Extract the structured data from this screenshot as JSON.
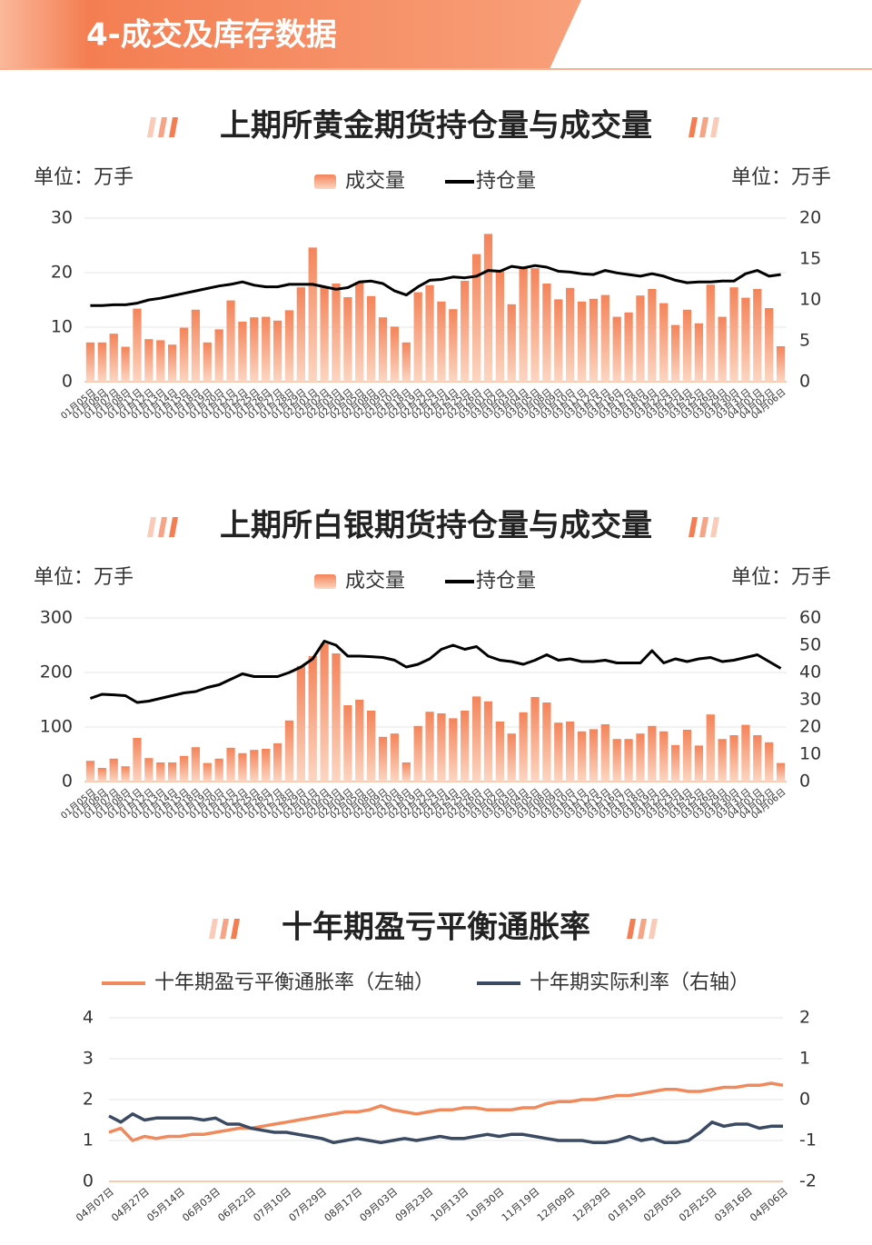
{
  "header": {
    "title": "4-成交及库存数据"
  },
  "chart_data": [
    {
      "type": "bar",
      "title": "上期所黄金期货持仓量与成交量",
      "y_label": "单位：万手",
      "y2_label": "单位：万手",
      "categories": [
        "01月05日",
        "01月06日",
        "01月07日",
        "01月08日",
        "01月11日",
        "01月12日",
        "01月13日",
        "01月14日",
        "01月15日",
        "01月18日",
        "01月19日",
        "01月20日",
        "01月21日",
        "01月22日",
        "01月25日",
        "01月26日",
        "01月27日",
        "01月28日",
        "01月29日",
        "02月01日",
        "02月02日",
        "02月03日",
        "02月04日",
        "02月05日",
        "02月08日",
        "02月09日",
        "02月10日",
        "02月18日",
        "02月19日",
        "02月22日",
        "02月23日",
        "02月24日",
        "02月25日",
        "02月26日",
        "03月01日",
        "03月02日",
        "03月03日",
        "03月04日",
        "03月05日",
        "03月08日",
        "03月09日",
        "03月10日",
        "03月11日",
        "03月12日",
        "03月15日",
        "03月16日",
        "03月17日",
        "03月18日",
        "03月19日",
        "03月22日",
        "03月23日",
        "03月24日",
        "03月25日",
        "03月26日",
        "03月29日",
        "03月30日",
        "03月31日",
        "04月01日",
        "04月02日",
        "04月06日"
      ],
      "series": [
        {
          "name": "成交量",
          "color": "#f4845a",
          "values": [
            7.2,
            7.2,
            8.8,
            6.4,
            13.4,
            7.8,
            7.6,
            6.8,
            9.9,
            13.2,
            7.2,
            9.6,
            14.9,
            11.0,
            11.8,
            11.9,
            11.2,
            13.1,
            17.3,
            24.6,
            17.3,
            18.0,
            15.5,
            18.3,
            15.7,
            11.8,
            10.1,
            7.2,
            16.4,
            17.7,
            14.7,
            13.3,
            18.5,
            23.4,
            27.1,
            20.5,
            14.2,
            21.0,
            20.8,
            18.0,
            15.1,
            17.2,
            14.7,
            15.2,
            15.9,
            11.9,
            12.7,
            15.8,
            17.0,
            14.4,
            10.4,
            13.2,
            10.7,
            17.8,
            11.9,
            17.3,
            15.4,
            17.0,
            13.5,
            6.5
          ]
        },
        {
          "name": "持仓量",
          "color": "#000000",
          "type": "line",
          "axis": "y2",
          "values": [
            9.3,
            9.3,
            9.4,
            9.4,
            9.6,
            10.0,
            10.2,
            10.5,
            10.8,
            11.1,
            11.4,
            11.7,
            11.9,
            12.2,
            11.8,
            11.6,
            11.6,
            11.9,
            11.9,
            11.9,
            11.6,
            11.3,
            11.5,
            12.2,
            12.3,
            12.0,
            11.1,
            10.6,
            11.6,
            12.4,
            12.5,
            12.8,
            12.7,
            12.9,
            13.6,
            13.5,
            14.1,
            13.9,
            14.2,
            14.0,
            13.5,
            13.4,
            13.2,
            13.1,
            13.6,
            13.3,
            13.1,
            12.9,
            13.2,
            12.9,
            12.4,
            12.1,
            12.2,
            12.2,
            12.3,
            12.3,
            13.2,
            13.6,
            12.9,
            13.1
          ]
        }
      ],
      "ylim": [
        0,
        30
      ],
      "yticks": [
        0,
        10,
        20,
        30
      ],
      "y2lim": [
        0,
        20
      ],
      "y2ticks": [
        0,
        5,
        10,
        15,
        20
      ],
      "grid": true
    },
    {
      "type": "bar",
      "title": "上期所白银期货持仓量与成交量",
      "y_label": "单位：万手",
      "y2_label": "单位：万手",
      "categories": [
        "01月05日",
        "01月06日",
        "01月07日",
        "01月08日",
        "01月11日",
        "01月12日",
        "01月13日",
        "01月14日",
        "01月15日",
        "01月18日",
        "01月19日",
        "01月20日",
        "01月21日",
        "01月22日",
        "01月25日",
        "01月26日",
        "01月27日",
        "01月28日",
        "01月29日",
        "02月01日",
        "02月02日",
        "02月03日",
        "02月04日",
        "02月05日",
        "02月08日",
        "02月09日",
        "02月10日",
        "02月18日",
        "02月19日",
        "02月22日",
        "02月23日",
        "02月24日",
        "02月25日",
        "02月26日",
        "03月01日",
        "03月02日",
        "03月03日",
        "03月04日",
        "03月05日",
        "03月08日",
        "03月09日",
        "03月10日",
        "03月11日",
        "03月12日",
        "03月15日",
        "03月16日",
        "03月17日",
        "03月18日",
        "03月19日",
        "03月22日",
        "03月23日",
        "03月24日",
        "03月25日",
        "03月26日",
        "03月29日",
        "03月30日",
        "03月31日",
        "04月01日",
        "04月02日",
        "04月06日"
      ],
      "series": [
        {
          "name": "成交量",
          "color": "#f4845a",
          "values": [
            38,
            25,
            42,
            28,
            80,
            43,
            35,
            35,
            47,
            63,
            34,
            42,
            62,
            52,
            58,
            60,
            70,
            112,
            212,
            230,
            253,
            235,
            140,
            150,
            130,
            82,
            88,
            35,
            102,
            128,
            125,
            116,
            130,
            156,
            147,
            110,
            88,
            127,
            155,
            145,
            108,
            110,
            92,
            96,
            105,
            78,
            78,
            88,
            102,
            92,
            67,
            95,
            66,
            123,
            78,
            85,
            104,
            85,
            72,
            34
          ]
        },
        {
          "name": "持仓量",
          "color": "#000000",
          "type": "line",
          "axis": "y2",
          "values": [
            30.5,
            32,
            31.8,
            31.5,
            29,
            29.5,
            30.5,
            31.5,
            32.5,
            33,
            34.5,
            35.5,
            37.5,
            39.5,
            38.5,
            38.5,
            38.5,
            40,
            42,
            45,
            51.5,
            50,
            46,
            46,
            45.8,
            45.5,
            44.5,
            42,
            43,
            45,
            48.5,
            50,
            48.5,
            49.5,
            46,
            44.5,
            44,
            43,
            44.5,
            46.5,
            44.5,
            45,
            44,
            44,
            44.5,
            43.5,
            43.5,
            43.5,
            48,
            43.5,
            45,
            44,
            45,
            45.5,
            44,
            44.5,
            45.5,
            46.5,
            44,
            41.5
          ]
        }
      ],
      "ylim": [
        0,
        300
      ],
      "yticks": [
        0,
        100,
        200,
        300
      ],
      "y2lim": [
        0,
        60
      ],
      "y2ticks": [
        0,
        10,
        20,
        30,
        40,
        50,
        60
      ],
      "grid": true
    },
    {
      "type": "line",
      "title": "十年期盈亏平衡通胀率",
      "categories": [
        "04月07日",
        null,
        null,
        "04月27日",
        null,
        null,
        "05月14日",
        null,
        null,
        "06月03日",
        null,
        null,
        "06月22日",
        null,
        null,
        "07月10日",
        null,
        null,
        "07月29日",
        null,
        null,
        "08月17日",
        null,
        null,
        "09月03日",
        null,
        null,
        "09月23日",
        null,
        null,
        "10月13日",
        null,
        null,
        "10月30日",
        null,
        null,
        "11月19日",
        null,
        null,
        "12月09日",
        null,
        null,
        "12月29日",
        null,
        null,
        "01月19日",
        null,
        null,
        "02月05日",
        null,
        null,
        "02月25日",
        null,
        null,
        "03月16日",
        null,
        null,
        "04月06日"
      ],
      "series": [
        {
          "name": "十年期盈亏平衡通胀率（左轴）",
          "color": "#f08a5d",
          "values": [
            1.2,
            1.3,
            1.0,
            1.1,
            1.05,
            1.1,
            1.1,
            1.15,
            1.15,
            1.2,
            1.25,
            1.3,
            1.3,
            1.35,
            1.4,
            1.45,
            1.5,
            1.55,
            1.6,
            1.65,
            1.7,
            1.7,
            1.75,
            1.85,
            1.75,
            1.7,
            1.65,
            1.7,
            1.75,
            1.75,
            1.8,
            1.8,
            1.75,
            1.75,
            1.75,
            1.8,
            1.8,
            1.9,
            1.95,
            1.95,
            2.0,
            2.0,
            2.05,
            2.1,
            2.1,
            2.15,
            2.2,
            2.25,
            2.25,
            2.2,
            2.2,
            2.25,
            2.3,
            2.3,
            2.35,
            2.35,
            2.4,
            2.35
          ]
        },
        {
          "name": "十年期实际利率（右轴）",
          "color": "#3b4a63",
          "axis": "y2",
          "values": [
            -0.4,
            -0.55,
            -0.35,
            -0.5,
            -0.45,
            -0.45,
            -0.45,
            -0.45,
            -0.5,
            -0.45,
            -0.6,
            -0.6,
            -0.7,
            -0.75,
            -0.8,
            -0.8,
            -0.85,
            -0.9,
            -0.95,
            -1.05,
            -1.0,
            -0.95,
            -1.0,
            -1.05,
            -1.0,
            -0.95,
            -1.0,
            -0.95,
            -0.9,
            -0.95,
            -0.95,
            -0.9,
            -0.85,
            -0.9,
            -0.85,
            -0.85,
            -0.9,
            -0.95,
            -1.0,
            -1.0,
            -1.0,
            -1.05,
            -1.05,
            -1.0,
            -0.9,
            -1.0,
            -0.95,
            -1.05,
            -1.05,
            -1.0,
            -0.8,
            -0.55,
            -0.65,
            -0.6,
            -0.6,
            -0.7,
            -0.65,
            -0.65
          ]
        }
      ],
      "ylim": [
        0,
        4
      ],
      "yticks": [
        0,
        1,
        2,
        3,
        4
      ],
      "y2lim": [
        -2,
        2
      ],
      "y2ticks": [
        -2,
        -1,
        0,
        1,
        2
      ],
      "grid": true
    }
  ]
}
